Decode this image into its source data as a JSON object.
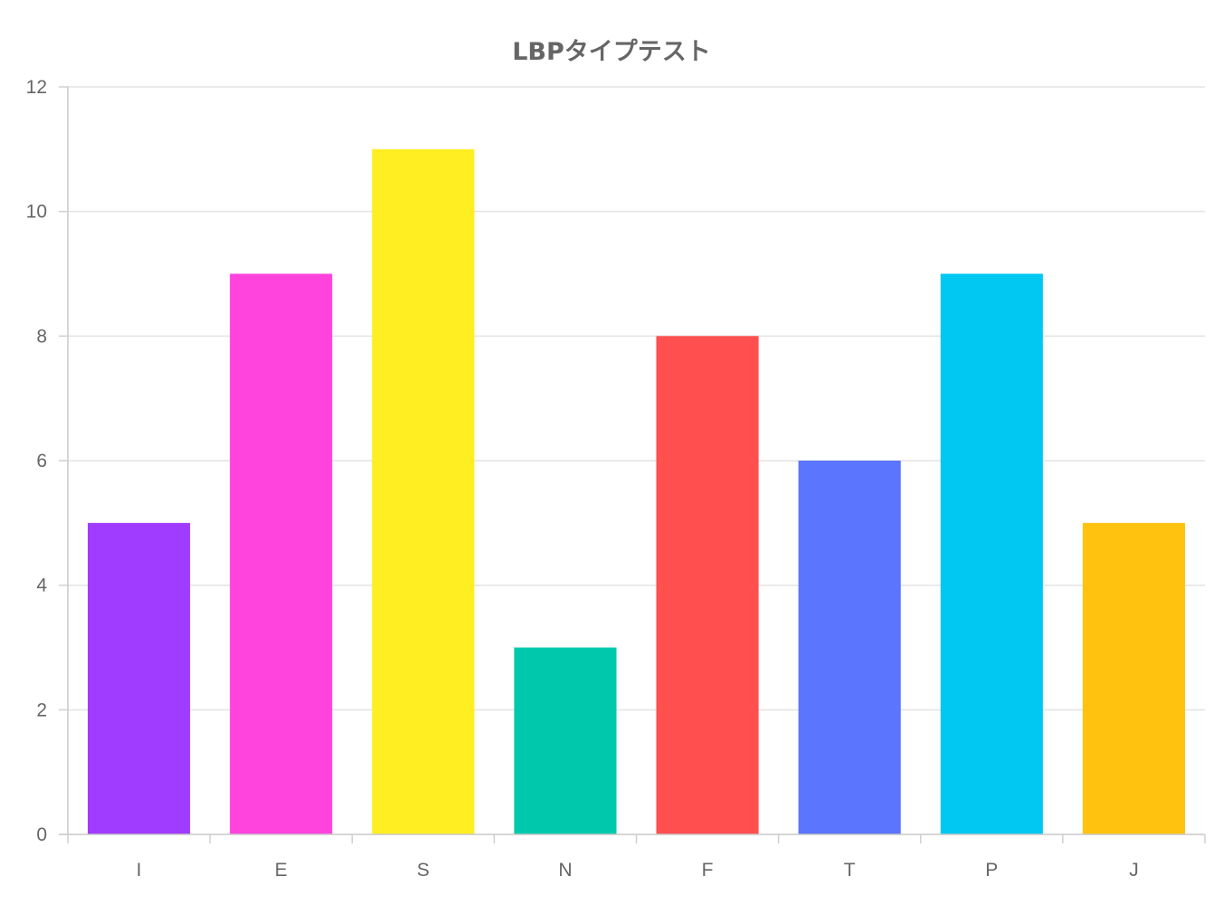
{
  "chart_data": {
    "type": "bar",
    "title": "LBPタイプテスト",
    "xlabel": "",
    "ylabel": "",
    "categories": [
      "I",
      "E",
      "S",
      "N",
      "F",
      "T",
      "P",
      "J"
    ],
    "values": [
      5,
      9,
      11,
      3,
      8,
      6,
      9,
      5
    ],
    "colors": [
      "#9f3cff",
      "#ff44dd",
      "#ffee22",
      "#00c8ad",
      "#ff4f4f",
      "#5b75ff",
      "#00c8f2",
      "#ffc20e"
    ],
    "ylim": [
      0,
      12
    ],
    "yticks": [
      "0",
      "2",
      "4",
      "6",
      "8",
      "10",
      "12"
    ],
    "grid": true,
    "legend": "none"
  }
}
